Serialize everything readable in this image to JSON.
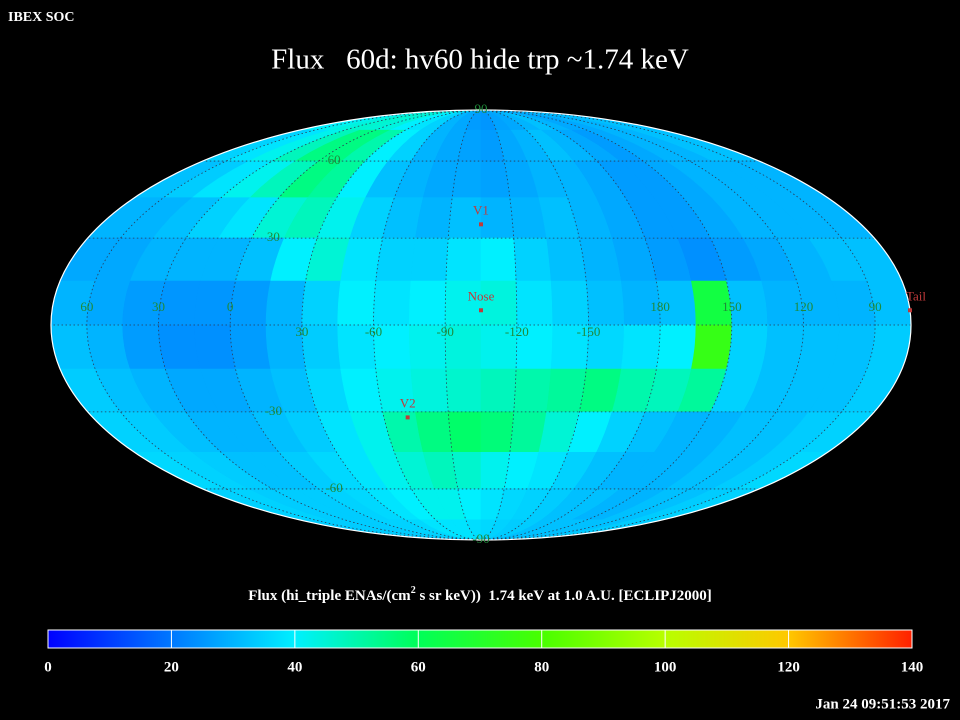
{
  "header": {
    "source": "IBEX SOC",
    "timestamp": "Jan 24 09:51:53 2017"
  },
  "chart_data": {
    "type": "skymap",
    "projection": "mollweide",
    "title": "Flux   60d: hv60 hide trp ~1.74 keV",
    "center_lon": 255,
    "lon_edges": [
      435,
      420,
      405,
      390,
      375,
      360,
      345,
      330,
      315,
      300,
      285,
      270,
      255,
      240,
      225,
      210,
      195,
      180,
      165,
      150,
      135,
      120,
      105,
      90,
      75
    ],
    "lat_edges": [
      90,
      75,
      60,
      45,
      30,
      15,
      0,
      -15,
      -30,
      -45,
      -60,
      -75,
      -90
    ],
    "values": [
      [
        40,
        42,
        44,
        46,
        45,
        44,
        40,
        38,
        35,
        30,
        28,
        26,
        25,
        27,
        28,
        30,
        32,
        30,
        28,
        28,
        30,
        30,
        32,
        32
      ],
      [
        35,
        38,
        42,
        48,
        55,
        55,
        50,
        40,
        35,
        30,
        28,
        27,
        26,
        28,
        30,
        32,
        30,
        28,
        26,
        28,
        30,
        30,
        32,
        32
      ],
      [
        32,
        34,
        38,
        42,
        48,
        55,
        52,
        40,
        32,
        30,
        28,
        28,
        27,
        28,
        30,
        30,
        28,
        26,
        26,
        28,
        30,
        30,
        30,
        30
      ],
      [
        30,
        30,
        32,
        35,
        38,
        45,
        48,
        42,
        35,
        32,
        30,
        32,
        30,
        30,
        32,
        30,
        28,
        26,
        26,
        28,
        30,
        30,
        30,
        30
      ],
      [
        28,
        28,
        30,
        30,
        30,
        32,
        40,
        45,
        38,
        35,
        35,
        38,
        40,
        35,
        32,
        30,
        28,
        26,
        24,
        26,
        28,
        30,
        32,
        32
      ],
      [
        30,
        28,
        26,
        25,
        25,
        26,
        30,
        35,
        40,
        38,
        40,
        42,
        44,
        38,
        35,
        32,
        30,
        32,
        65,
        32,
        30,
        30,
        30,
        32
      ],
      [
        32,
        30,
        26,
        24,
        24,
        26,
        30,
        34,
        38,
        40,
        42,
        44,
        42,
        40,
        38,
        36,
        38,
        40,
        75,
        35,
        32,
        32,
        32,
        34
      ],
      [
        34,
        32,
        30,
        28,
        28,
        30,
        32,
        36,
        40,
        42,
        44,
        46,
        48,
        50,
        52,
        55,
        50,
        48,
        52,
        35,
        32,
        32,
        32,
        34
      ],
      [
        35,
        34,
        32,
        30,
        30,
        32,
        34,
        38,
        42,
        50,
        55,
        58,
        56,
        52,
        45,
        40,
        35,
        32,
        30,
        30,
        32,
        32,
        34,
        35
      ],
      [
        36,
        35,
        34,
        32,
        32,
        34,
        36,
        38,
        42,
        45,
        48,
        46,
        42,
        40,
        38,
        35,
        32,
        30,
        30,
        30,
        32,
        32,
        34,
        36
      ],
      [
        35,
        35,
        34,
        34,
        34,
        35,
        36,
        38,
        40,
        42,
        42,
        40,
        38,
        36,
        35,
        34,
        32,
        32,
        30,
        30,
        32,
        32,
        34,
        35
      ],
      [
        34,
        34,
        34,
        34,
        34,
        35,
        35,
        36,
        38,
        38,
        38,
        37,
        36,
        35,
        34,
        34,
        32,
        32,
        32,
        32,
        32,
        32,
        34,
        34
      ]
    ],
    "lon_ticks": [
      60,
      30,
      0,
      {
        "value": -30,
        "label": "30"
      },
      -60,
      -90,
      -120,
      -150,
      180,
      150,
      120,
      90
    ],
    "lat_ticks": [
      90,
      60,
      30,
      -30,
      -60,
      -90
    ],
    "markers": [
      {
        "name": "V1",
        "lon": 255,
        "lat": 35
      },
      {
        "name": "Nose",
        "lon": 255,
        "lat": 5
      },
      {
        "name": "V2",
        "lon": 289,
        "lat": -32
      },
      {
        "name": "Tail",
        "lon": 75,
        "lat": 5
      }
    ],
    "marker_color": "#c03a3a",
    "colorbar": {
      "label": [
        "Flux (hi_triple ENAs/(cm",
        "2",
        " s sr keV))  1.74 keV at 1.0 A.U. [ECLIPJ2000]"
      ],
      "ticks": [
        0,
        20,
        40,
        60,
        80,
        100,
        120,
        140
      ],
      "colors": [
        "#0000ff",
        "#0078ff",
        "#00f0ff",
        "#00ff58",
        "#48ff00",
        "#b8ff00",
        "#ffc800",
        "#ff2000"
      ],
      "lim": [
        0,
        140
      ]
    }
  }
}
